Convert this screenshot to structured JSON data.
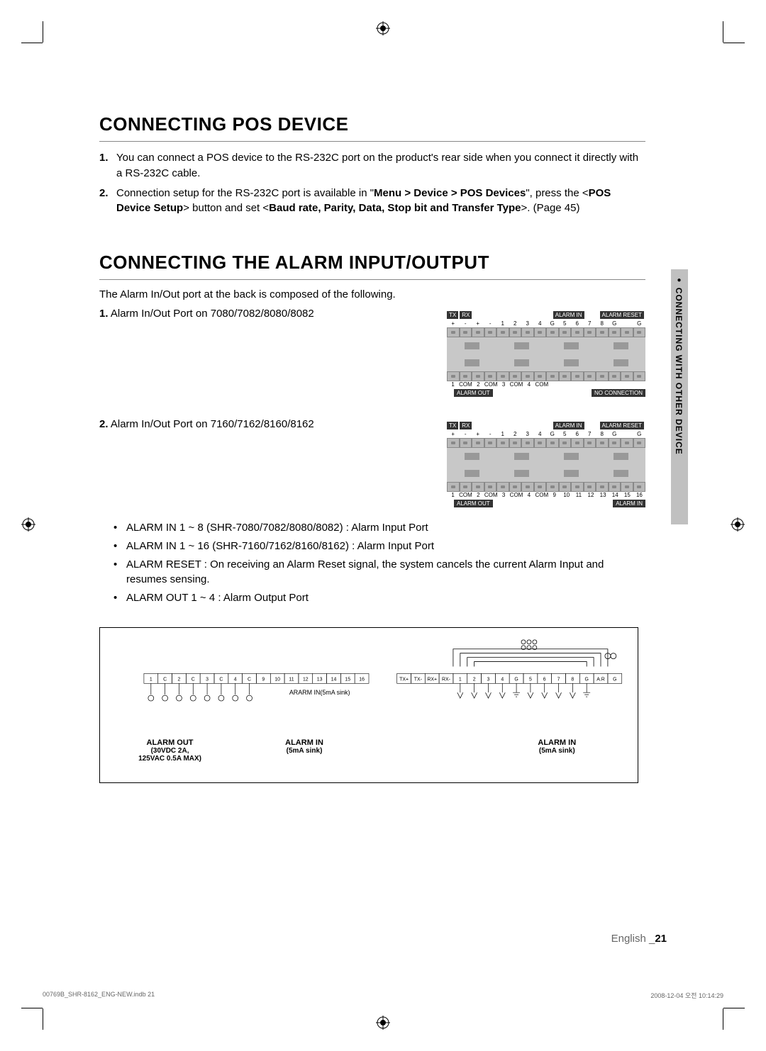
{
  "page": {
    "side_tab": "CONNECTING WITH OTHER DEVICE",
    "footer_lang": "English _",
    "footer_page": "21",
    "footer_file": "00769B_SHR-8162_ENG-NEW.indb   21",
    "footer_date": "2008-12-04   오전 10:14:29"
  },
  "section_pos": {
    "title": "CONNECTING POS DEVICE",
    "items": [
      {
        "num": "1.",
        "text": "You can connect a POS device to the RS-232C port on the product's rear side when you connect it directly with a RS-232C cable."
      },
      {
        "num": "2.",
        "prefix": "Connection setup for the RS-232C port is available in \"",
        "menu": "Menu > Device > POS Devices",
        "mid": "\", press the <",
        "btn": "POS Device Setup",
        "mid2": "> button and set <",
        "params": "Baud rate, Parity, Data, Stop bit and Transfer Type",
        "suffix": ">. (Page 45)"
      }
    ]
  },
  "section_alarm": {
    "title": "CONNECTING THE ALARM INPUT/OUTPUT",
    "intro": "The Alarm In/Out port at the back is composed of the following.",
    "ports": [
      {
        "num": "1.",
        "label": "Alarm In/Out Port on 7080/7082/8080/8082"
      },
      {
        "num": "2.",
        "label": "Alarm In/Out Port on 7160/7162/8160/8162"
      }
    ],
    "bullets": [
      "ALARM IN 1 ~ 8 (SHR-7080/7082/8080/8082) : Alarm Input Port",
      "ALARM IN 1 ~ 16 (SHR-7160/7162/8160/8162) : Alarm Input Port",
      "ALARM RESET : On receiving an Alarm Reset signal, the system cancels the current Alarm Input and resumes sensing.",
      "ALARM OUT 1 ~ 4 :  Alarm Output Port"
    ],
    "tb_header_labels": {
      "tx": "TX",
      "rx": "RX",
      "alarm_in": "ALARM IN",
      "alarm_reset": "ALARM RESET"
    },
    "tb_footer_labels": {
      "alarm_out": "ALARM OUT",
      "no_conn": "NO CONNECTION",
      "alarm_in": "ALARM IN"
    },
    "top_row_1": [
      "+",
      "-",
      "+",
      "-",
      "1",
      "2",
      "3",
      "4",
      "G",
      "5",
      "6",
      "7",
      "8",
      "G",
      "",
      "G"
    ],
    "bottom_row_1": [
      "1",
      "COM",
      "2",
      "COM",
      "3",
      "COM",
      "4",
      "COM",
      "",
      "",
      "",
      "",
      "",
      "",
      "",
      ""
    ],
    "top_row_2": [
      "+",
      "-",
      "+",
      "-",
      "1",
      "2",
      "3",
      "4",
      "G",
      "5",
      "6",
      "7",
      "8",
      "G",
      "",
      "G"
    ],
    "bottom_row_2": [
      "1",
      "COM",
      "2",
      "COM",
      "3",
      "COM",
      "4",
      "COM",
      "9",
      "10",
      "11",
      "12",
      "13",
      "14",
      "15",
      "16"
    ],
    "circuit": {
      "left_labels": [
        "1",
        "C",
        "2",
        "C",
        "3",
        "C",
        "4",
        "C",
        "9",
        "10",
        "11",
        "12",
        "13",
        "14",
        "15",
        "16"
      ],
      "right_labels": [
        "TX+",
        "TX-",
        "RX+",
        "RX-",
        "1",
        "2",
        "3",
        "4",
        "G",
        "5",
        "6",
        "7",
        "8",
        "G",
        "A.R",
        "G"
      ],
      "mid_label": "ARARM IN(5mA sink)",
      "alarm_out": "ALARM OUT",
      "alarm_out_spec": "(30VDC 2A,\n125VAC 0.5A MAX)",
      "alarm_in": "ALARM IN",
      "alarm_in_spec": "(5mA sink)"
    }
  },
  "colors": {
    "text": "#000000",
    "border": "#888888",
    "side_tab_bg": "#c0c0c0",
    "terminal_bg": "#c8c8c8",
    "label_bg": "#333333"
  }
}
